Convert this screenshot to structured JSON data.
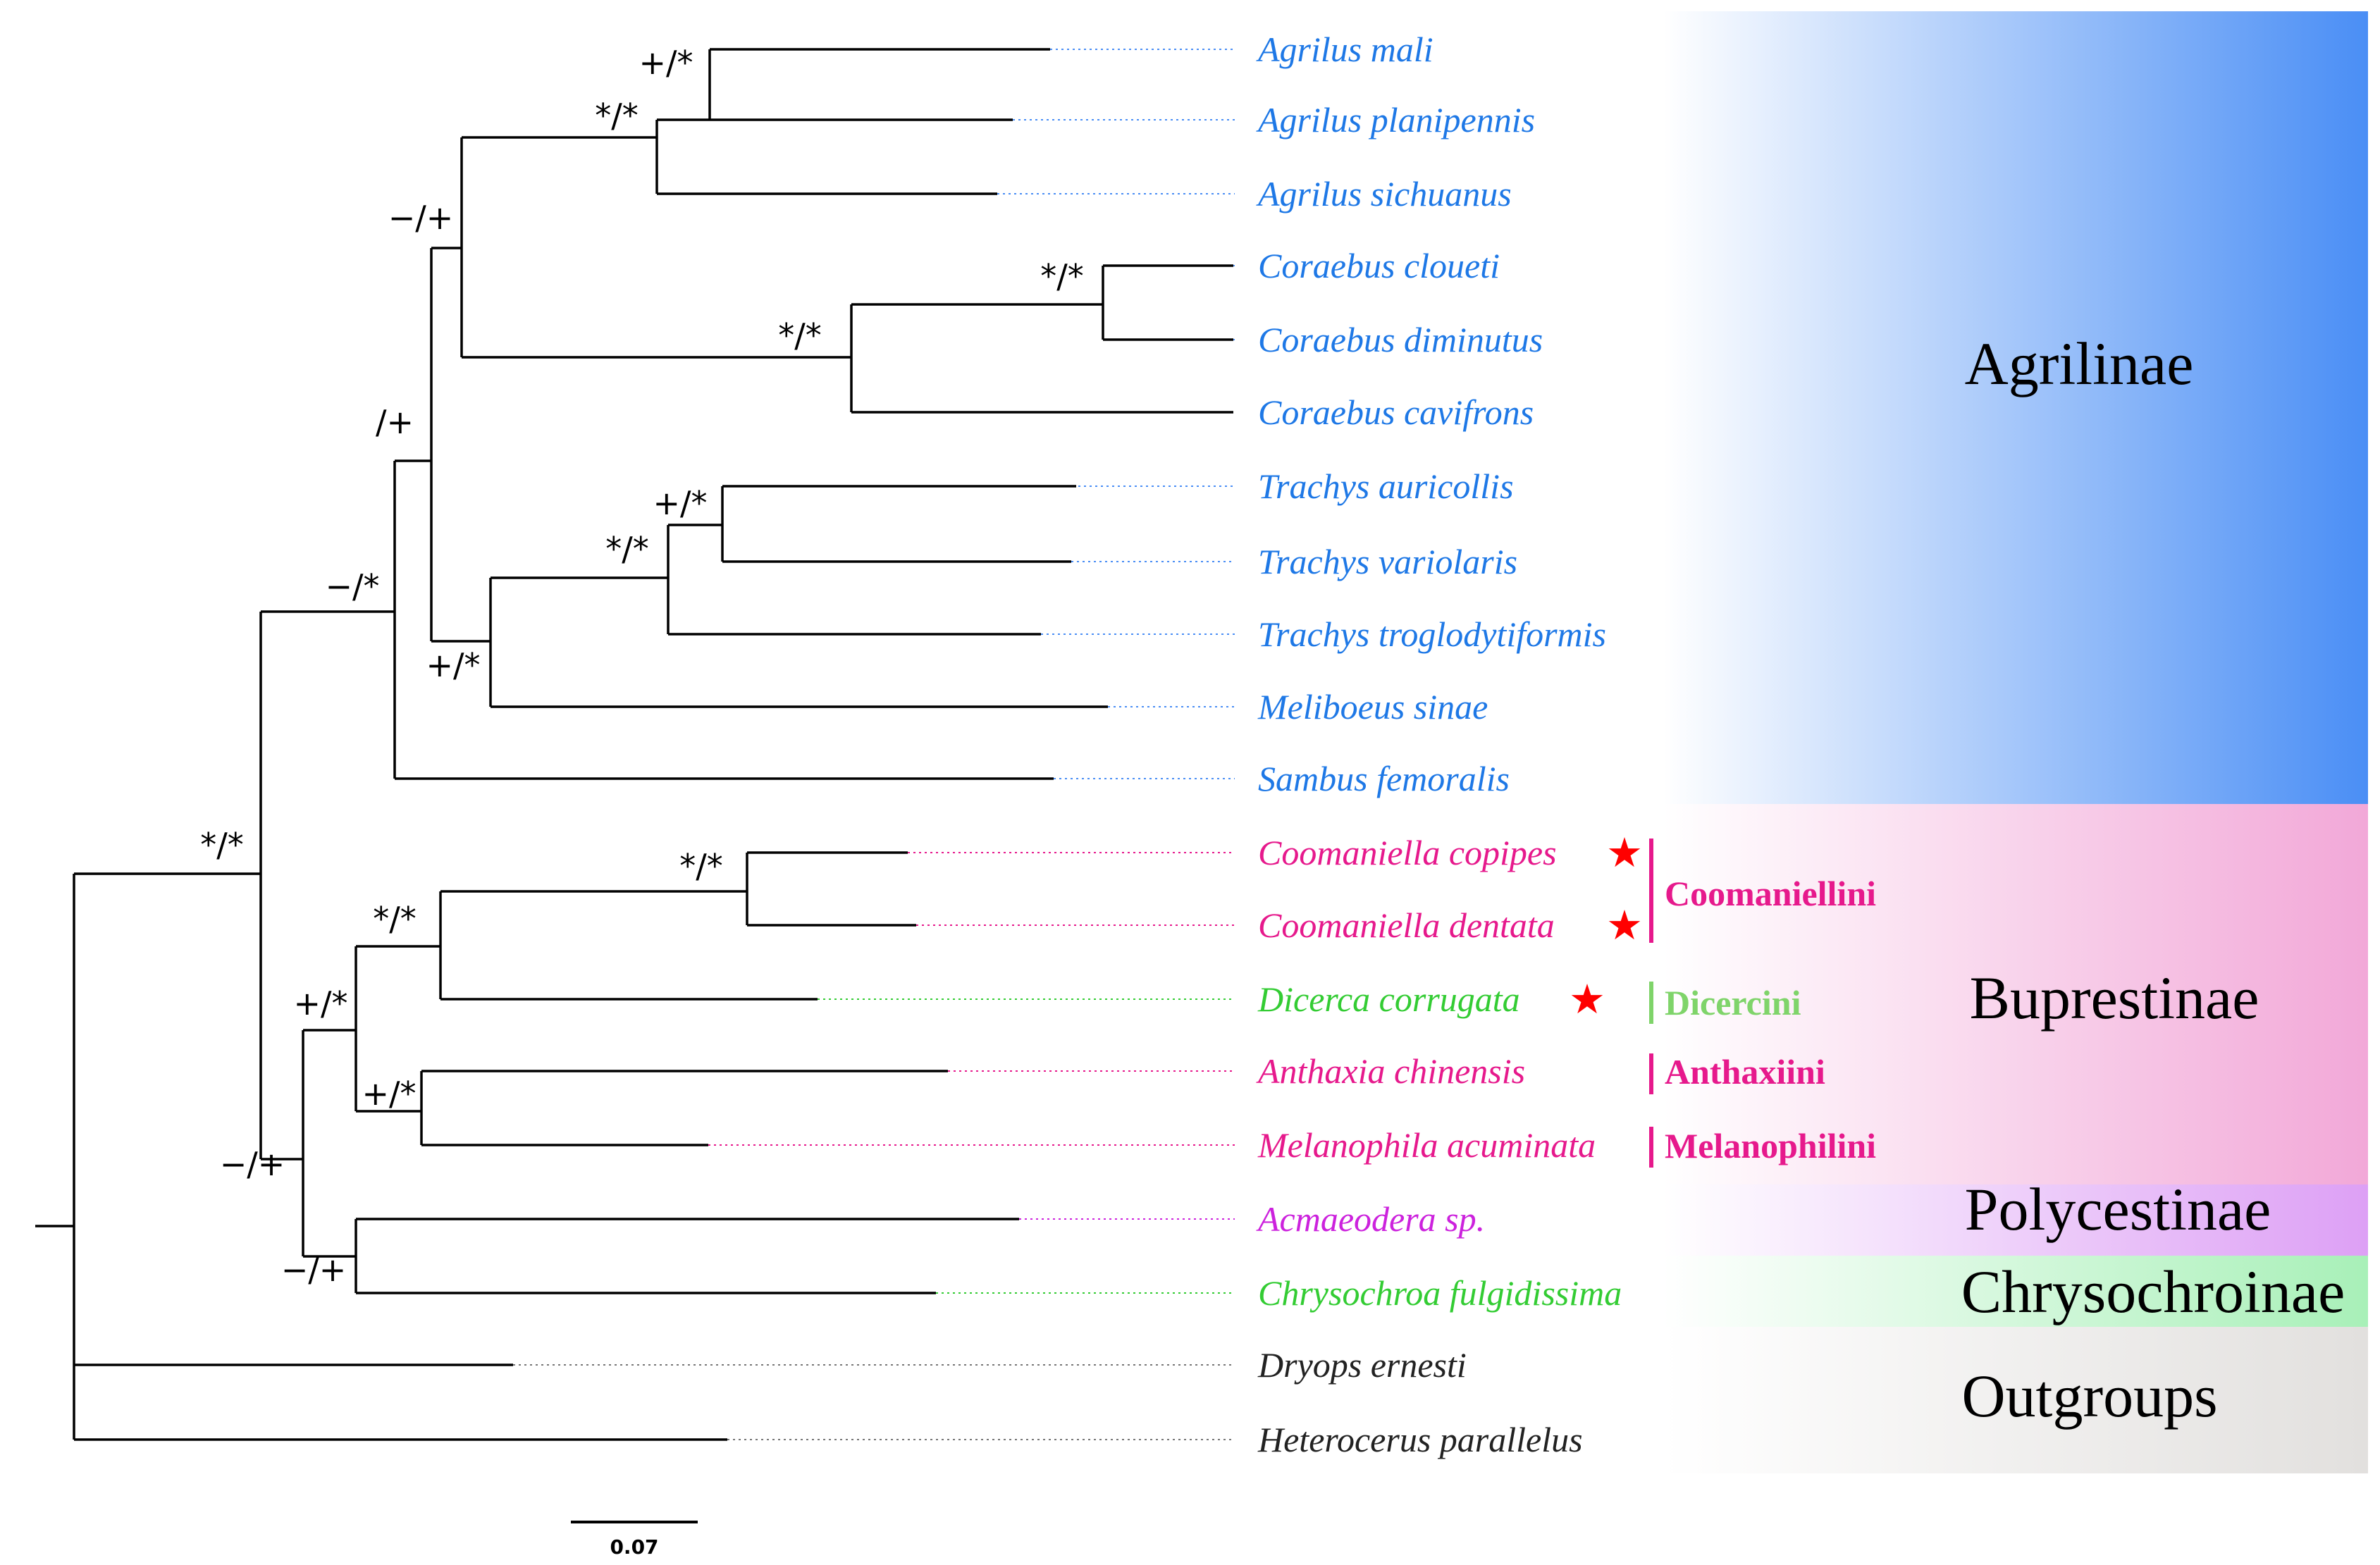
{
  "taxa": [
    {
      "name": "Agrilus mali",
      "color": "#1E78E6"
    },
    {
      "name": "Agrilus planipennis",
      "color": "#1E78E6"
    },
    {
      "name": "Agrilus sichuanus",
      "color": "#1E78E6"
    },
    {
      "name": "Coraebus cloueti",
      "color": "#1E78E6"
    },
    {
      "name": "Coraebus diminutus",
      "color": "#1E78E6"
    },
    {
      "name": "Coraebus cavifrons",
      "color": "#1E78E6"
    },
    {
      "name": "Trachys auricollis",
      "color": "#1E78E6"
    },
    {
      "name": "Trachys variolaris",
      "color": "#1E78E6"
    },
    {
      "name": "Trachys troglodytiformis",
      "color": "#1E78E6"
    },
    {
      "name": "Meliboeus sinae",
      "color": "#1E78E6"
    },
    {
      "name": "Sambus femoralis",
      "color": "#1E78E6"
    },
    {
      "name": "Coomaniella copipes",
      "color": "#E6198C",
      "star": "★"
    },
    {
      "name": "Coomaniella dentata",
      "color": "#E6198C",
      "star": "★"
    },
    {
      "name": "Dicerca corrugata",
      "color": "#33CC33",
      "star": "★"
    },
    {
      "name": "Anthaxia chinensis",
      "color": "#E6198C"
    },
    {
      "name": "Melanophila acuminata",
      "color": "#E6198C"
    },
    {
      "name": "Acmaeodera sp.",
      "color": "#CC22DD"
    },
    {
      "name": "Chrysochroa fulgidissima",
      "color": "#33CC33"
    },
    {
      "name": "Dryops ernesti",
      "color": "#222222"
    },
    {
      "name": "Heterocerus parallelus",
      "color": "#222222"
    }
  ],
  "support_values": [
    "+/*",
    "*/*",
    "−/+",
    "*/*",
    "*/*",
    "/+",
    "+/*",
    "*/*",
    "+/*",
    "−/*",
    "*/*",
    "*/*",
    "*/*",
    "+/*",
    "+/*",
    "−/+",
    "−/+"
  ],
  "tribes": [
    {
      "name": "Coomaniellini",
      "color": "#E6198C"
    },
    {
      "name": "Dicercini",
      "color": "#7FD46A"
    },
    {
      "name": "Anthaxiini",
      "color": "#E6198C"
    },
    {
      "name": "Melanophilini",
      "color": "#E6198C"
    }
  ],
  "families": [
    {
      "name": "Agrilinae",
      "color": "#4A8EF5"
    },
    {
      "name": "Buprestinae",
      "color": "#F2A8D8"
    },
    {
      "name": "Polycestinae",
      "color": "#DDA0F5"
    },
    {
      "name": "Chrysochroinae",
      "color": "#A8F0B8"
    },
    {
      "name": "Outgroups",
      "color": "#E2E0DE"
    }
  ],
  "star_color": "#FF0000",
  "scale_bar": {
    "label": "0.07"
  }
}
